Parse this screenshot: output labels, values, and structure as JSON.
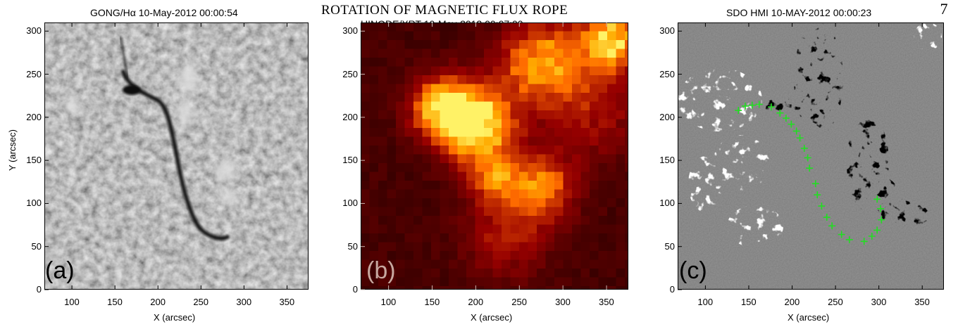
{
  "header": {
    "running_head": "ROTATION OF MAGNETIC FLUX ROPE",
    "page_number": "7"
  },
  "panels": [
    {
      "title": "GONG/Hα 10-May-2012 00:00:54",
      "letter": "(a)",
      "xlabel": "X (arcsec)",
      "ylabel": "Y (arcsec)",
      "xticks": [
        "100",
        "150",
        "200",
        "250",
        "300",
        "350"
      ],
      "yticks": [
        "0",
        "50",
        "100",
        "150",
        "200",
        "250",
        "300"
      ]
    },
    {
      "title": "HINODE/XRT 10-May-2012 00:07:00",
      "letter": "(b)",
      "xlabel": "X (arcsec)",
      "ylabel": "",
      "xticks": [
        "100",
        "150",
        "200",
        "250",
        "300",
        "350"
      ],
      "yticks": [
        "0",
        "50",
        "100",
        "150",
        "200",
        "250",
        "300"
      ]
    },
    {
      "title": "SDO HMI 10-MAY-2012 00:00:23",
      "letter": "(c)",
      "xlabel": "X (arcsec)",
      "ylabel": "",
      "xticks": [
        "100",
        "150",
        "200",
        "250",
        "300",
        "350"
      ],
      "yticks": [
        "0",
        "50",
        "100",
        "150",
        "200",
        "250",
        "300"
      ]
    }
  ],
  "chart_data": [
    {
      "type": "other",
      "title": "GONG/Hα 10-May-2012 00:00:54",
      "xlabel": "X (arcsec)",
      "ylabel": "Y (arcsec)",
      "xlim": [
        68,
        375
      ],
      "ylim": [
        0,
        310
      ],
      "colormap": "gray"
    },
    {
      "type": "heatmap",
      "title": "HINODE/XRT 10-May-2012 00:07:00",
      "xlabel": "X (arcsec)",
      "xlim": [
        68,
        375
      ],
      "ylim": [
        0,
        310
      ],
      "colormap": "red-temperature"
    },
    {
      "type": "scatter",
      "title": "SDO HMI 10-MAY-2012 00:00:23",
      "xlabel": "X (arcsec)",
      "xlim": [
        68,
        375
      ],
      "ylim": [
        0,
        310
      ],
      "marker_color": "#22dd22",
      "marker": "+",
      "points": [
        [
          138,
          208
        ],
        [
          146,
          213
        ],
        [
          154,
          214
        ],
        [
          162,
          215
        ],
        [
          176,
          212
        ],
        [
          186,
          205
        ],
        [
          193,
          199
        ],
        [
          199,
          192
        ],
        [
          205,
          184
        ],
        [
          209,
          176
        ],
        [
          214,
          164
        ],
        [
          218,
          153
        ],
        [
          220,
          141
        ],
        [
          227,
          123
        ],
        [
          229,
          110
        ],
        [
          234,
          97
        ],
        [
          240,
          84
        ],
        [
          246,
          74
        ],
        [
          257,
          64
        ],
        [
          266,
          58
        ],
        [
          283,
          56
        ],
        [
          292,
          62
        ],
        [
          298,
          69
        ],
        [
          303,
          81
        ],
        [
          302,
          94
        ],
        [
          298,
          105
        ]
      ]
    }
  ]
}
